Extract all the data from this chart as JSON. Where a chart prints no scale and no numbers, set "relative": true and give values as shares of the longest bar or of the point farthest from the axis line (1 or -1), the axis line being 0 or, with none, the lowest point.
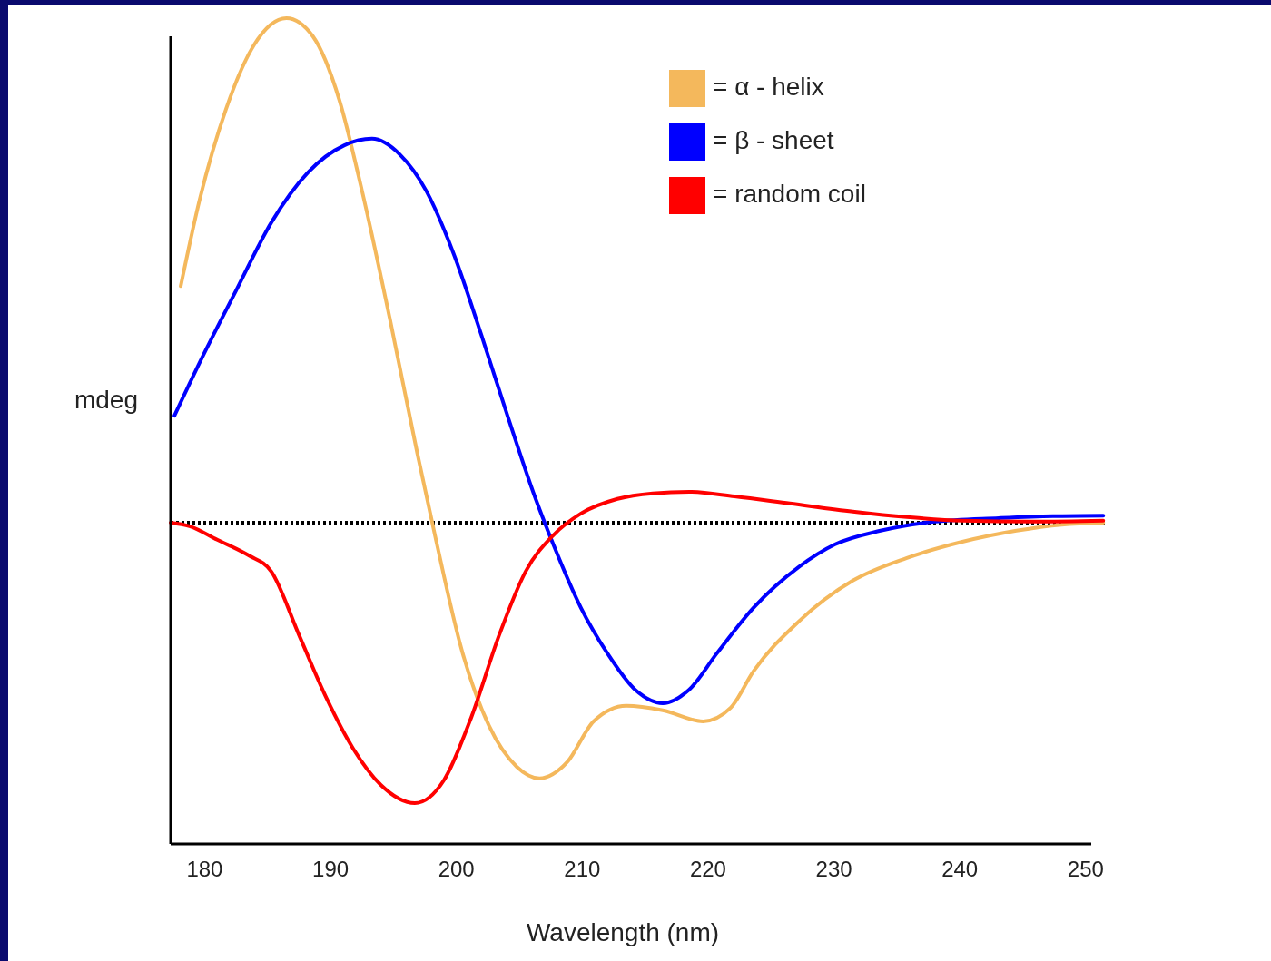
{
  "chart_data": {
    "type": "line",
    "relative": true,
    "xlabel": "Wavelength (nm)",
    "ylabel": "mdeg",
    "xlim": [
      177.3,
      251.6
    ],
    "xticks": [
      180,
      190,
      200,
      210,
      220,
      230,
      240,
      250
    ],
    "legend": "top right",
    "grid": false,
    "marker": "none",
    "line_style": "solid",
    "ref_lines": [
      {
        "axis": "y",
        "value": 0,
        "color": "#000000",
        "line_style": "dotted"
      }
    ],
    "series": [
      {
        "name": "= α - helix",
        "color": "#f4b85c",
        "x": [
          178.1,
          179.6,
          181.7,
          183.9,
          186.5,
          188.6,
          190.7,
          192.5,
          194.7,
          196.9,
          198.3,
          200.5,
          202.6,
          204.8,
          206.6,
          208.8,
          210.9,
          213.5,
          216.4,
          219.6,
          221.8,
          223.6,
          227.2,
          231.5,
          235.8,
          240.2,
          244.5,
          248.1,
          251.4
        ],
        "values": [
          0.469,
          0.64,
          0.82,
          0.946,
          1.0,
          0.964,
          0.838,
          0.658,
          0.406,
          0.137,
          -0.025,
          -0.259,
          -0.403,
          -0.484,
          -0.507,
          -0.475,
          -0.394,
          -0.363,
          -0.372,
          -0.394,
          -0.367,
          -0.295,
          -0.196,
          -0.115,
          -0.07,
          -0.038,
          -0.016,
          -0.004,
          0
        ]
      },
      {
        "name": "= β - sheet",
        "color": "#0000ff",
        "x": [
          177.6,
          179.6,
          182.5,
          185.3,
          188.2,
          191.1,
          193.3,
          195.5,
          197.6,
          199.8,
          202.0,
          204.1,
          206.3,
          207.7,
          209.9,
          212.0,
          214.2,
          216.4,
          218.5,
          220.7,
          223.6,
          227.2,
          230.1,
          233.7,
          238.0,
          243.1,
          247.4,
          251.4
        ],
        "values": [
          0.212,
          0.317,
          0.46,
          0.595,
          0.694,
          0.748,
          0.761,
          0.73,
          0.658,
          0.532,
          0.371,
          0.209,
          0.047,
          -0.043,
          -0.169,
          -0.259,
          -0.331,
          -0.358,
          -0.331,
          -0.259,
          -0.169,
          -0.088,
          -0.043,
          -0.016,
          0.002,
          0.009,
          0.013,
          0.014
        ]
      },
      {
        "name": "= random coil",
        "color": "#ff0000",
        "x": [
          177.3,
          178.8,
          181.0,
          183.5,
          185.3,
          187.5,
          189.7,
          191.8,
          194.0,
          196.7,
          199.0,
          201.2,
          203.4,
          205.5,
          207.7,
          209.9,
          212.8,
          215.6,
          218.5,
          222.1,
          226.5,
          231.5,
          235.8,
          240.2,
          245.9,
          251.4
        ],
        "values": [
          0,
          -0.007,
          -0.034,
          -0.065,
          -0.097,
          -0.223,
          -0.349,
          -0.448,
          -0.52,
          -0.556,
          -0.511,
          -0.385,
          -0.223,
          -0.097,
          -0.025,
          0.018,
          0.047,
          0.058,
          0.061,
          0.052,
          0.038,
          0.022,
          0.011,
          0.004,
          0.002,
          0.004
        ]
      }
    ]
  }
}
